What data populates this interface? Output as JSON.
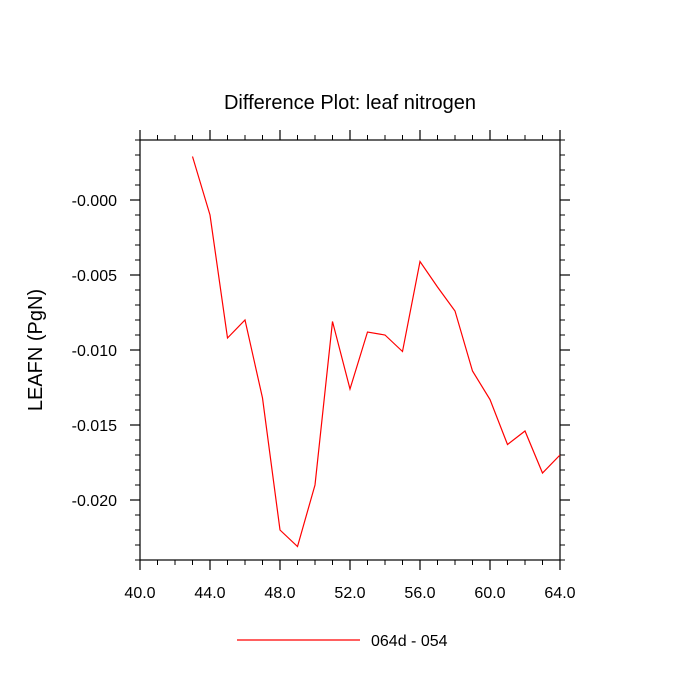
{
  "chart_data": {
    "type": "line",
    "title": "Difference Plot: leaf nitrogen",
    "xlabel": "",
    "ylabel": "LEAFN  (PgN)",
    "xlim": [
      40,
      64
    ],
    "ylim": [
      -0.024,
      0.004
    ],
    "x_ticks": [
      40,
      44,
      48,
      52,
      56,
      60,
      64
    ],
    "x_tick_labels": [
      "40.0",
      "44.0",
      "48.0",
      "52.0",
      "56.0",
      "60.0",
      "64.0"
    ],
    "y_ticks": [
      0.0,
      -0.005,
      -0.01,
      -0.015,
      -0.02
    ],
    "y_tick_labels": [
      "-0.000",
      "-0.005",
      "-0.010",
      "-0.015",
      "-0.020"
    ],
    "grid": false,
    "legend_position": "bottom-center",
    "series": [
      {
        "name": "064d - 054",
        "color": "#ff0000",
        "x": [
          43,
          44,
          45,
          46,
          47,
          48,
          49,
          50,
          51,
          52,
          53,
          54,
          55,
          56,
          57,
          58,
          59,
          60,
          61,
          62,
          63,
          64
        ],
        "y": [
          0.0029,
          -0.001,
          -0.0092,
          -0.008,
          -0.0132,
          -0.022,
          -0.0231,
          -0.019,
          -0.0081,
          -0.0126,
          -0.0088,
          -0.009,
          -0.0101,
          -0.0041,
          -0.0058,
          -0.0074,
          -0.0114,
          -0.0133,
          -0.0163,
          -0.0154,
          -0.0182,
          -0.017
        ]
      }
    ]
  }
}
